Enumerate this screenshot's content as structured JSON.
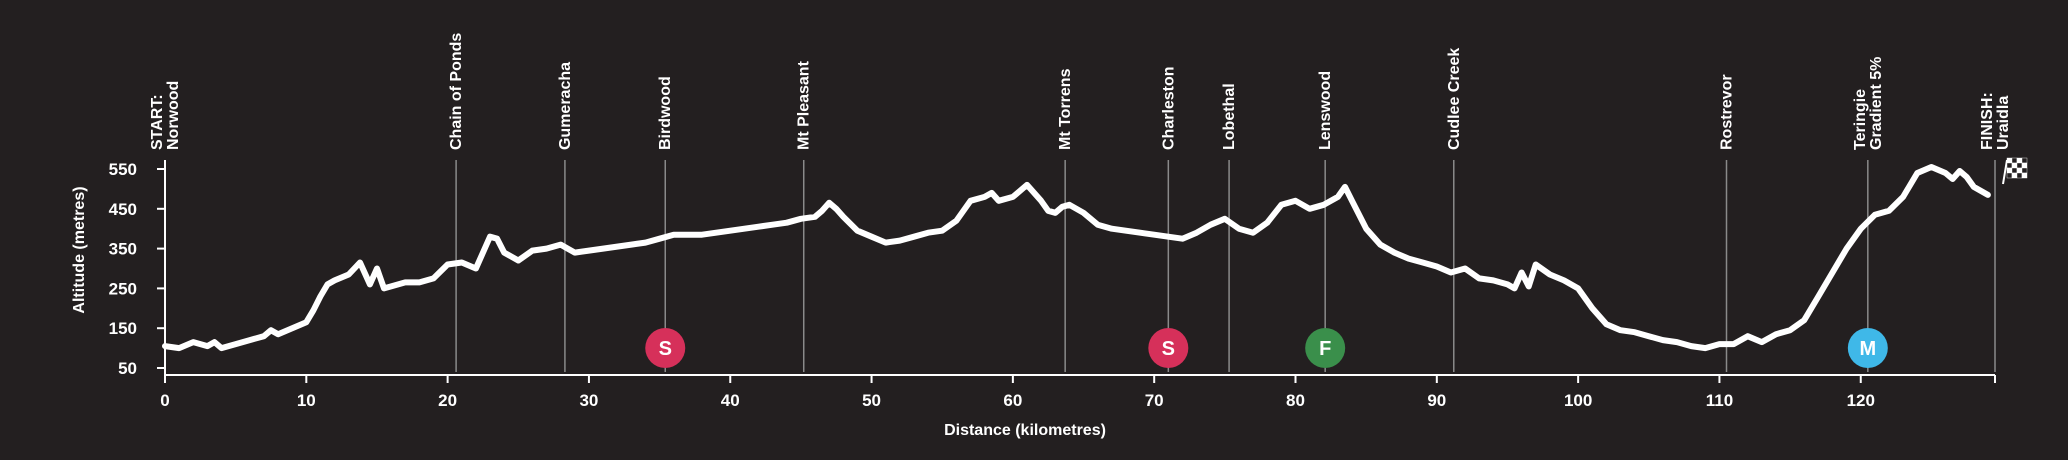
{
  "chart_data": {
    "type": "line",
    "title": "",
    "xlabel": "Distance (kilometres)",
    "ylabel": "Altitude (metres)",
    "xlim": [
      0,
      129.5
    ],
    "ylim": [
      50,
      560
    ],
    "x_ticks": [
      0,
      10,
      20,
      30,
      40,
      50,
      60,
      70,
      80,
      90,
      100,
      110,
      120
    ],
    "y_ticks": [
      50,
      150,
      250,
      350,
      450,
      550
    ],
    "line_color": "#ffffff",
    "background": "#231f20",
    "grid": false,
    "series": [
      {
        "x": [
          0,
          1,
          2,
          3,
          3.5,
          4,
          5,
          6,
          7,
          7.5,
          8,
          9,
          10,
          10.5,
          11,
          11.5,
          12,
          13,
          13.8,
          14.5,
          15,
          15.5,
          16,
          17,
          18,
          19,
          20,
          21,
          22,
          23,
          23.5,
          24,
          25,
          26,
          27,
          28,
          28.5,
          29,
          30,
          31,
          32,
          33,
          34,
          35,
          36,
          38,
          40,
          41,
          42,
          43,
          44,
          45,
          46,
          46.5,
          47,
          47.5,
          48,
          49,
          50,
          51,
          52,
          53,
          54,
          55,
          56,
          57,
          58,
          58.5,
          59,
          60,
          61,
          62,
          62.5,
          63,
          63.5,
          64,
          65,
          66,
          67,
          68,
          69,
          70,
          71,
          72,
          73,
          74,
          75,
          76,
          77,
          78,
          79,
          80,
          81,
          82,
          83,
          83.5,
          84,
          85,
          86,
          87,
          88,
          89,
          90,
          91,
          92,
          93,
          94,
          95,
          95.5,
          96,
          96.5,
          97,
          98,
          99,
          100,
          101,
          102,
          103,
          104,
          105,
          106,
          107,
          108,
          109,
          110,
          111,
          112,
          113,
          114,
          115,
          116,
          117,
          118,
          119,
          120,
          121,
          122,
          123,
          124,
          125,
          126,
          126.5,
          127,
          127.5,
          128,
          129
        ],
        "y": [
          105,
          100,
          115,
          105,
          115,
          100,
          110,
          120,
          130,
          145,
          135,
          150,
          165,
          195,
          230,
          260,
          270,
          285,
          315,
          260,
          300,
          250,
          255,
          265,
          265,
          275,
          310,
          315,
          300,
          380,
          375,
          340,
          320,
          345,
          350,
          360,
          350,
          340,
          345,
          350,
          355,
          360,
          365,
          375,
          385,
          385,
          395,
          400,
          405,
          410,
          415,
          425,
          430,
          445,
          465,
          450,
          430,
          395,
          380,
          365,
          370,
          380,
          390,
          395,
          420,
          470,
          480,
          490,
          470,
          480,
          510,
          470,
          445,
          440,
          455,
          460,
          440,
          410,
          400,
          395,
          390,
          385,
          380,
          375,
          390,
          410,
          425,
          400,
          390,
          415,
          460,
          470,
          450,
          460,
          480,
          505,
          470,
          400,
          360,
          340,
          325,
          315,
          305,
          290,
          300,
          275,
          270,
          260,
          250,
          290,
          255,
          310,
          285,
          270,
          250,
          200,
          160,
          145,
          140,
          130,
          120,
          115,
          105,
          100,
          110,
          110,
          130,
          115,
          135,
          145,
          170,
          230,
          290,
          350,
          400,
          435,
          445,
          480,
          540,
          555,
          540,
          525,
          545,
          530,
          505,
          485
        ]
      }
    ],
    "towns": [
      {
        "label_lines": [
          "START:",
          "Norwood"
        ],
        "km": 0,
        "line": false
      },
      {
        "label_lines": [
          "Chain of Ponds"
        ],
        "km": 20.6,
        "line": true
      },
      {
        "label_lines": [
          "Gumeracha"
        ],
        "km": 28.3,
        "line": true
      },
      {
        "label_lines": [
          "Birdwood"
        ],
        "km": 35.4,
        "line": true
      },
      {
        "label_lines": [
          "Mt Pleasant"
        ],
        "km": 45.2,
        "line": true
      },
      {
        "label_lines": [
          "Mt Torrens"
        ],
        "km": 63.7,
        "line": true
      },
      {
        "label_lines": [
          "Charleston"
        ],
        "km": 71.0,
        "line": true
      },
      {
        "label_lines": [
          "Lobethal"
        ],
        "km": 75.3,
        "line": true
      },
      {
        "label_lines": [
          "Lenswood"
        ],
        "km": 82.1,
        "line": true
      },
      {
        "label_lines": [
          "Cudlee Creek"
        ],
        "km": 91.2,
        "line": true
      },
      {
        "label_lines": [
          "Rostrevor"
        ],
        "km": 110.5,
        "line": true
      },
      {
        "label_lines": [
          "Teringie",
          "Gradient 5%"
        ],
        "km": 120.5,
        "line": true
      },
      {
        "label_lines": [
          "FINISH:",
          "Uraidla"
        ],
        "km": 129.5,
        "line": true
      }
    ],
    "markers": [
      {
        "label": "S",
        "km": 35.4,
        "color": "#d6305a"
      },
      {
        "label": "S",
        "km": 71.0,
        "color": "#d6305a"
      },
      {
        "label": "F",
        "km": 82.1,
        "color": "#3a8f4b"
      },
      {
        "label": "M",
        "km": 120.5,
        "color": "#3fb8e8"
      }
    ]
  }
}
